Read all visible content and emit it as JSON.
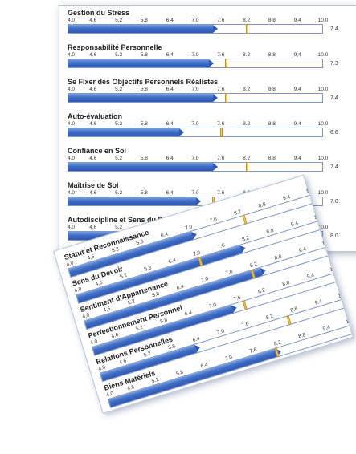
{
  "scale_ticks": [
    "4.0",
    "4.6",
    "5.2",
    "5.8",
    "6.4",
    "7.0",
    "7.6",
    "8.2",
    "8.8",
    "9.4",
    "10.0"
  ],
  "colors": {
    "bar": "#3e6cc4",
    "marker": "#f3d06a",
    "track_border": "#7f98c6"
  },
  "back_panel": [
    {
      "title": "Gestion du Stress",
      "value": "7.4",
      "marker": 8.2
    },
    {
      "title": "Responsabilité Personnelle",
      "value": "7.3",
      "marker": 7.7
    },
    {
      "title": "Se Fixer des Objectifs Personnels Réalistes",
      "value": "7.4",
      "marker": 7.7
    },
    {
      "title": "Auto-évaluation",
      "value": "6.6",
      "marker": 7.6
    },
    {
      "title": "Confiance en Soi",
      "value": "7.4",
      "marker": 8.2
    },
    {
      "title": "Maîtrise de Soi",
      "value": "7.0",
      "marker": 7.4
    },
    {
      "title": "Autodiscipline et Sens du Devoir",
      "value": "8.0",
      "marker": 8.2
    }
  ],
  "front_panel": [
    {
      "title": "Statut et Reconnaissance",
      "value": "7.0",
      "marker": 8.3
    },
    {
      "title": "Sens du Devoir",
      "value": "8.0",
      "marker": 7.0
    },
    {
      "title": "Sentiment d'Appartenance",
      "value": "8.3",
      "marker": 8.1
    },
    {
      "title": "Perfectionnement Personnel",
      "value": "7.4",
      "marker": 7.7
    },
    {
      "title": "Relations Personnelles",
      "value": "6.3",
      "marker": 8.6
    },
    {
      "title": "Biens Matériels",
      "value": "8.1",
      "marker": 8.1
    }
  ]
}
